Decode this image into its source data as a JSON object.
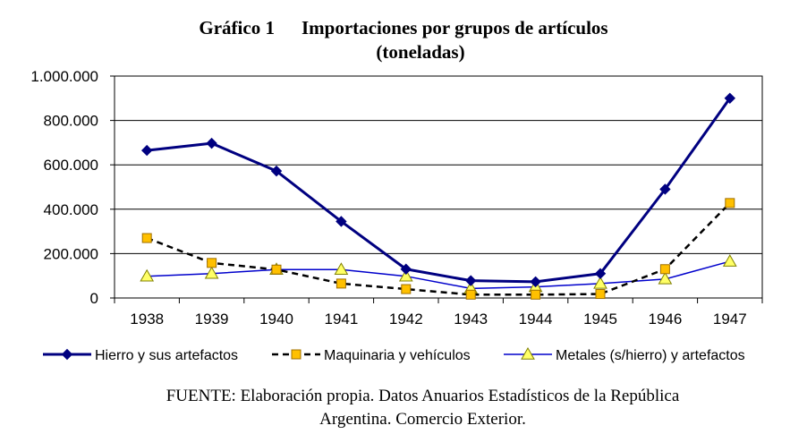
{
  "title": {
    "number": "Gráfico 1",
    "main": "Importaciones por grupos de artículos",
    "unit": "(toneladas)"
  },
  "source": {
    "line1": "FUENTE:  Elaboración propia. Datos  Anuarios Estadísticos  de la República",
    "line2": "Argentina. Comercio Exterior."
  },
  "chart_data": {
    "type": "line",
    "title": "Gráfico 1 Importaciones por grupos de artículos (toneladas)",
    "xlabel": "",
    "ylabel": "",
    "categories": [
      "1938",
      "1939",
      "1940",
      "1941",
      "1942",
      "1943",
      "1944",
      "1945",
      "1946",
      "1947"
    ],
    "ylim": [
      0,
      1000000
    ],
    "yticks": [
      0,
      200000,
      400000,
      600000,
      800000,
      1000000
    ],
    "ytick_labels": [
      "0",
      "200.000",
      "400.000",
      "600.000",
      "800.000",
      "1.000.000"
    ],
    "grid": true,
    "legend_position": "bottom",
    "series": [
      {
        "name": "Hierro y sus artefactos",
        "color": "#000080",
        "marker": "diamond",
        "line": "solid",
        "values": [
          665000,
          697000,
          572000,
          345000,
          130000,
          78000,
          73000,
          110000,
          490000,
          900000
        ]
      },
      {
        "name": "Maquinaria y vehículos",
        "color": "#000000",
        "marker_color": "#FFC000",
        "marker": "square",
        "line": "dashed",
        "values": [
          270000,
          158000,
          128000,
          65000,
          40000,
          15000,
          15000,
          18000,
          130000,
          428000
        ]
      },
      {
        "name": "Metales (s/hierro) y artefactos",
        "color": "#0000CC",
        "marker_color": "#FFFF66",
        "marker": "triangle",
        "line": "solid",
        "values": [
          98000,
          110000,
          128000,
          128000,
          98000,
          43000,
          50000,
          65000,
          85000,
          165000
        ]
      }
    ]
  }
}
